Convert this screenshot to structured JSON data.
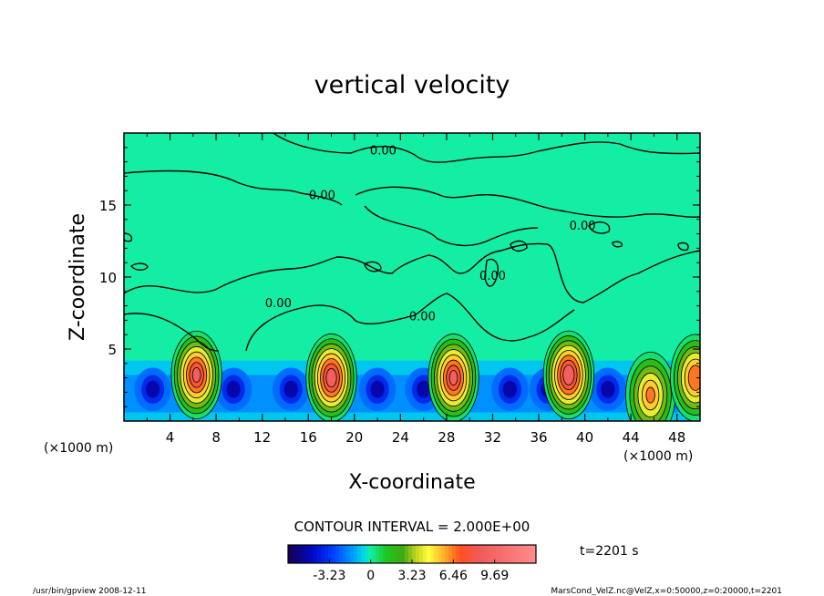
{
  "chart_data": {
    "type": "heatmap",
    "title": "vertical velocity",
    "xlabel": "X-coordinate",
    "ylabel": "Z-coordinate",
    "x_unit_left": "(×1000 m)",
    "x_unit_right": "(×1000 m)",
    "xlim": [
      0,
      50
    ],
    "ylim": [
      0,
      20
    ],
    "x_ticks": [
      "4",
      "8",
      "12",
      "16",
      "20",
      "24",
      "28",
      "32",
      "36",
      "40",
      "44",
      "48"
    ],
    "x_tick_values": [
      4,
      8,
      12,
      16,
      20,
      24,
      28,
      32,
      36,
      40,
      44,
      48
    ],
    "y_ticks": [
      "5",
      "10",
      "15"
    ],
    "y_tick_values": [
      5,
      10,
      15
    ],
    "contour_interval": "CONTOUR INTERVAL = 2.000E+00",
    "contour_labels": [
      "0.00",
      "0.00",
      "0.00",
      "0.00",
      "0.00",
      "0.00"
    ],
    "contour_label_positions": [
      [
        22.5,
        18.5
      ],
      [
        17.2,
        15.4
      ],
      [
        39.8,
        13.3
      ],
      [
        13.4,
        7.9
      ],
      [
        25.9,
        7.0
      ],
      [
        32.0,
        9.8
      ]
    ],
    "updrafts": [
      {
        "x": 6.3,
        "z": 3.2,
        "peak": 9.0
      },
      {
        "x": 18.0,
        "z": 3.0,
        "peak": 9.5
      },
      {
        "x": 28.6,
        "z": 3.0,
        "peak": 9.0
      },
      {
        "x": 38.6,
        "z": 3.2,
        "peak": 9.69
      },
      {
        "x": 45.7,
        "z": 1.8,
        "peak": 6.5
      },
      {
        "x": 49.6,
        "z": 3.0,
        "peak": 7.5
      }
    ],
    "colorbar": {
      "ticks": [
        "-3.23",
        "0",
        "3.23",
        "6.46",
        "9.69"
      ],
      "tick_values": [
        -3.23,
        0,
        3.23,
        6.46,
        9.69
      ],
      "min": -6.46,
      "max": 12.92
    },
    "colors": {
      "background_field": "#14eea4",
      "zero_band": "#12dcb8"
    },
    "time": "t=2201 s"
  },
  "footer": {
    "left": "/usr/bin/gpview   2008-12-11",
    "right": "MarsCond_VelZ.nc@VelZ,x=0:50000,z=0:20000,t=2201"
  }
}
